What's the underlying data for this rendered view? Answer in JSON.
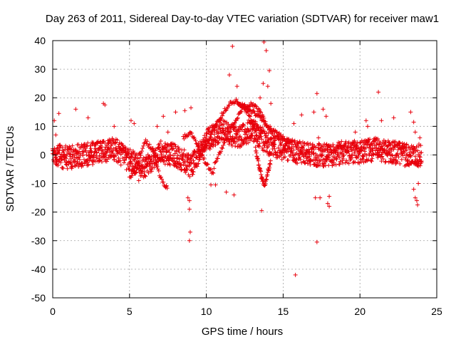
{
  "chart_data": {
    "type": "scatter",
    "title": "Day 263 of 2011, Sidereal Day-to-day VTEC variation (SDTVAR) for receiver maw1",
    "xlabel": "GPS time / hours",
    "ylabel": "SDTVAR / TECUs",
    "xlim": [
      0,
      25
    ],
    "ylim": [
      -50,
      40
    ],
    "xticks": [
      0,
      5,
      10,
      15,
      20,
      25
    ],
    "yticks": [
      -50,
      -40,
      -30,
      -20,
      -10,
      0,
      10,
      20,
      30,
      40
    ],
    "grid": true,
    "marker": "+",
    "color": "#e8000b",
    "series": [
      {
        "name": "maw1 SDTVAR",
        "dense_band": {
          "x_range": [
            0,
            24
          ],
          "center_at_hours": [
            [
              0,
              0
            ],
            [
              1,
              -1
            ],
            [
              2,
              0
            ],
            [
              3,
              1
            ],
            [
              4,
              2
            ],
            [
              5,
              -2
            ],
            [
              6,
              -4
            ],
            [
              7,
              1
            ],
            [
              8,
              0
            ],
            [
              9,
              -4
            ],
            [
              10,
              5
            ],
            [
              11,
              9
            ],
            [
              12,
              6
            ],
            [
              13,
              9
            ],
            [
              14,
              4
            ],
            [
              15,
              2
            ],
            [
              16,
              1
            ],
            [
              17,
              0
            ],
            [
              18,
              0
            ],
            [
              19,
              1
            ],
            [
              20,
              1
            ],
            [
              21,
              2
            ],
            [
              22,
              1
            ],
            [
              23,
              0
            ],
            [
              24,
              0
            ]
          ],
          "spread_tecu": 4
        },
        "arcs": [
          {
            "x": [
              9.5,
              10.0,
              10.5,
              11.0,
              11.5,
              12.0,
              12.5,
              13.0,
              13.5
            ],
            "y": [
              0,
              4,
              9,
              14,
              18,
              19,
              16,
              12,
              8
            ]
          },
          {
            "x": [
              10.5,
              11.0,
              11.5,
              12.0,
              12.5,
              13.0,
              13.5,
              14.0,
              14.5
            ],
            "y": [
              -4,
              2,
              8,
              13,
              17,
              18,
              15,
              10,
              5
            ]
          },
          {
            "x": [
              12.0,
              12.5,
              13.0,
              13.5,
              14.0,
              14.5,
              15.0,
              15.5
            ],
            "y": [
              18,
              17,
              15,
              13,
              10,
              8,
              6,
              4
            ]
          },
          {
            "x": [
              8.5,
              9.0,
              9.5,
              10.0,
              10.5
            ],
            "y": [
              6,
              8,
              2,
              -3,
              -7
            ]
          },
          {
            "x": [
              5.0,
              5.5,
              6.0,
              6.5,
              7.0,
              7.5
            ],
            "y": [
              -8,
              -5,
              5,
              2,
              -8,
              -12
            ]
          },
          {
            "x": [
              13.2,
              13.4,
              13.6,
              13.8,
              14.0,
              14.2
            ],
            "y": [
              2,
              -3,
              -8,
              -11,
              -6,
              -2
            ]
          }
        ],
        "outliers": [
          [
            0.1,
            12
          ],
          [
            0.2,
            7
          ],
          [
            0.4,
            14.5
          ],
          [
            1.5,
            16
          ],
          [
            2.3,
            13
          ],
          [
            3.3,
            18
          ],
          [
            3.4,
            17.5
          ],
          [
            4.0,
            10
          ],
          [
            5.1,
            12
          ],
          [
            5.3,
            11
          ],
          [
            5.6,
            -9
          ],
          [
            6.8,
            10
          ],
          [
            7.2,
            13.5
          ],
          [
            7.4,
            -11
          ],
          [
            7.5,
            8
          ],
          [
            8.0,
            15
          ],
          [
            8.6,
            15.5
          ],
          [
            8.8,
            -15
          ],
          [
            8.9,
            -19
          ],
          [
            8.9,
            -16
          ],
          [
            8.95,
            -27
          ],
          [
            8.9,
            -30
          ],
          [
            9.0,
            16.5
          ],
          [
            10.3,
            -10.5
          ],
          [
            10.6,
            -10.5
          ],
          [
            11.3,
            -13
          ],
          [
            11.5,
            28
          ],
          [
            11.7,
            38
          ],
          [
            11.8,
            -14
          ],
          [
            12.0,
            24
          ],
          [
            13.0,
            10
          ],
          [
            13.5,
            20
          ],
          [
            13.6,
            -19.5
          ],
          [
            13.7,
            25
          ],
          [
            13.75,
            39.5
          ],
          [
            13.9,
            36.5
          ],
          [
            14.0,
            24
          ],
          [
            14.1,
            29.5
          ],
          [
            14.2,
            18
          ],
          [
            15.7,
            11
          ],
          [
            15.8,
            -42
          ],
          [
            16.2,
            14
          ],
          [
            17.0,
            15
          ],
          [
            17.2,
            21.5
          ],
          [
            17.2,
            -30.5
          ],
          [
            17.3,
            6
          ],
          [
            17.1,
            -15
          ],
          [
            17.4,
            -15
          ],
          [
            17.6,
            16
          ],
          [
            17.8,
            13.5
          ],
          [
            17.9,
            -17
          ],
          [
            18.0,
            -18
          ],
          [
            18.0,
            -14.5
          ],
          [
            19.7,
            8
          ],
          [
            20.4,
            12
          ],
          [
            20.5,
            10
          ],
          [
            21.2,
            22
          ],
          [
            21.4,
            12
          ],
          [
            22.2,
            13
          ],
          [
            23.3,
            15
          ],
          [
            23.5,
            11.5
          ],
          [
            23.6,
            8
          ],
          [
            23.5,
            -12
          ],
          [
            23.6,
            -15
          ],
          [
            23.7,
            -16
          ],
          [
            23.75,
            -17.5
          ],
          [
            23.8,
            -10
          ],
          [
            23.9,
            6
          ]
        ]
      }
    ]
  }
}
